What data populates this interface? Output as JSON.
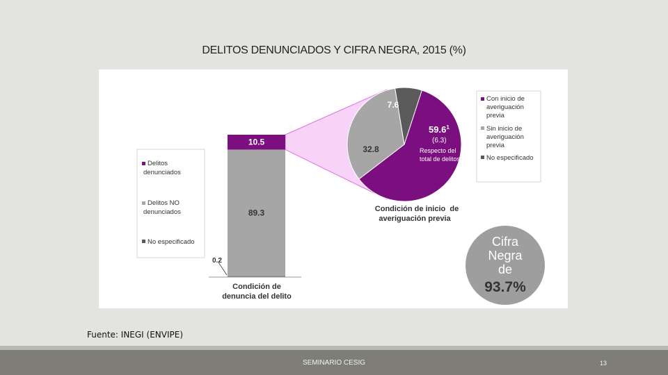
{
  "slide": {
    "title": "DELITOS DENUNCIADOS Y CIFRA NEGRA, 2015 (%)",
    "source": "Fuente: INEGI (ENVIPE)",
    "footer": "SEMINARIO CESIG",
    "page_number": "13"
  },
  "colors": {
    "purple": "#7b0f7f",
    "gray": "#a6a6a6",
    "dark_gray": "#5a5a5a",
    "connector_fill": "#f8d3f8"
  },
  "chart_data": [
    {
      "type": "bar",
      "stacked": true,
      "xlabel": "Condición de denuncia del delito",
      "categories": [
        "Condición de denuncia del delito"
      ],
      "series": [
        {
          "name": "Delitos denunciados",
          "values": [
            10.5
          ],
          "label": "10.5"
        },
        {
          "name": "Delitos NO denunciados",
          "values": [
            89.3
          ],
          "label": "89.3"
        },
        {
          "name": "No especificado",
          "values": [
            0.2
          ],
          "label": "0.2"
        }
      ],
      "legend": [
        "Delitos denunciados",
        "Delitos NO denunciados",
        "No especificado"
      ],
      "legend_placement": "left"
    },
    {
      "type": "pie",
      "title": "Condición de inicio de averiguación previa",
      "slices": [
        {
          "name": "Con inicio de averiguación previa",
          "value": 59.6,
          "label": "59.6",
          "superscript": "1",
          "note_value": "(6.3)",
          "note_text": "Respecto del total de delitos"
        },
        {
          "name": "Sin inicio de averiguación previa",
          "value": 32.8,
          "label": "32.8"
        },
        {
          "name": "No especificado",
          "value": 7.6,
          "label": "7.6"
        }
      ],
      "legend": [
        "Con inicio de averiguación previa",
        "Sin inicio de averiguación previa",
        "No especificado"
      ],
      "legend_placement": "right"
    }
  ],
  "callout": {
    "line1": "Cifra",
    "line2": "Negra",
    "line3": "de",
    "value": "93.7%"
  }
}
